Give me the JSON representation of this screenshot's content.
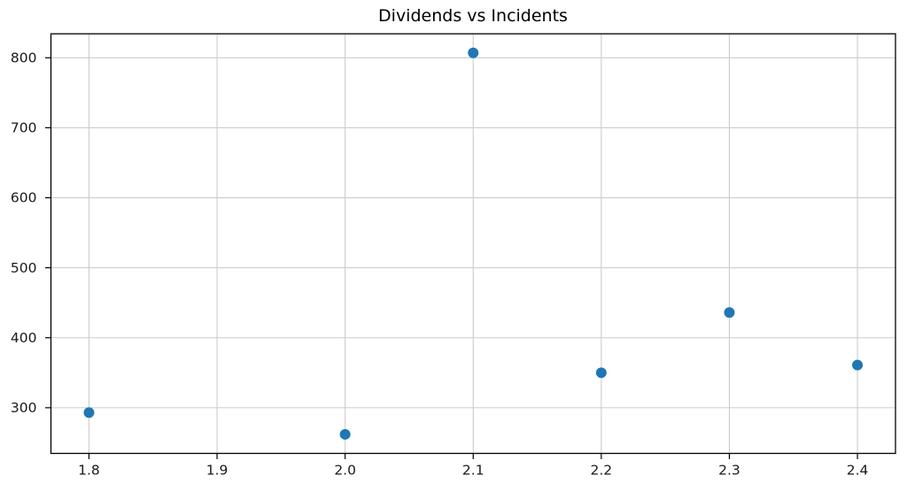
{
  "chart_data": {
    "type": "scatter",
    "title": "Dividends vs Incidents",
    "xlabel": "",
    "ylabel": "",
    "points": [
      {
        "x": 1.8,
        "y": 293
      },
      {
        "x": 2.0,
        "y": 262
      },
      {
        "x": 2.1,
        "y": 807
      },
      {
        "x": 2.2,
        "y": 350
      },
      {
        "x": 2.3,
        "y": 436
      },
      {
        "x": 2.4,
        "y": 361
      }
    ],
    "xticks": [
      1.8,
      1.9,
      2.0,
      2.1,
      2.2,
      2.3,
      2.4
    ],
    "xtick_labels": [
      "1.8",
      "1.9",
      "2.0",
      "2.1",
      "2.2",
      "2.3",
      "2.4"
    ],
    "yticks": [
      300,
      400,
      500,
      600,
      700,
      800
    ],
    "ytick_labels": [
      "300",
      "400",
      "500",
      "600",
      "700",
      "800"
    ],
    "xlim": [
      1.7703,
      2.4297
    ],
    "ylim": [
      234.75,
      834.25
    ],
    "grid": true,
    "legend_position": "none",
    "colors": {
      "marker": "#1f77b4",
      "grid": "#cccccc",
      "axis": "#000000",
      "tick_label": "#1a1a1a"
    }
  }
}
